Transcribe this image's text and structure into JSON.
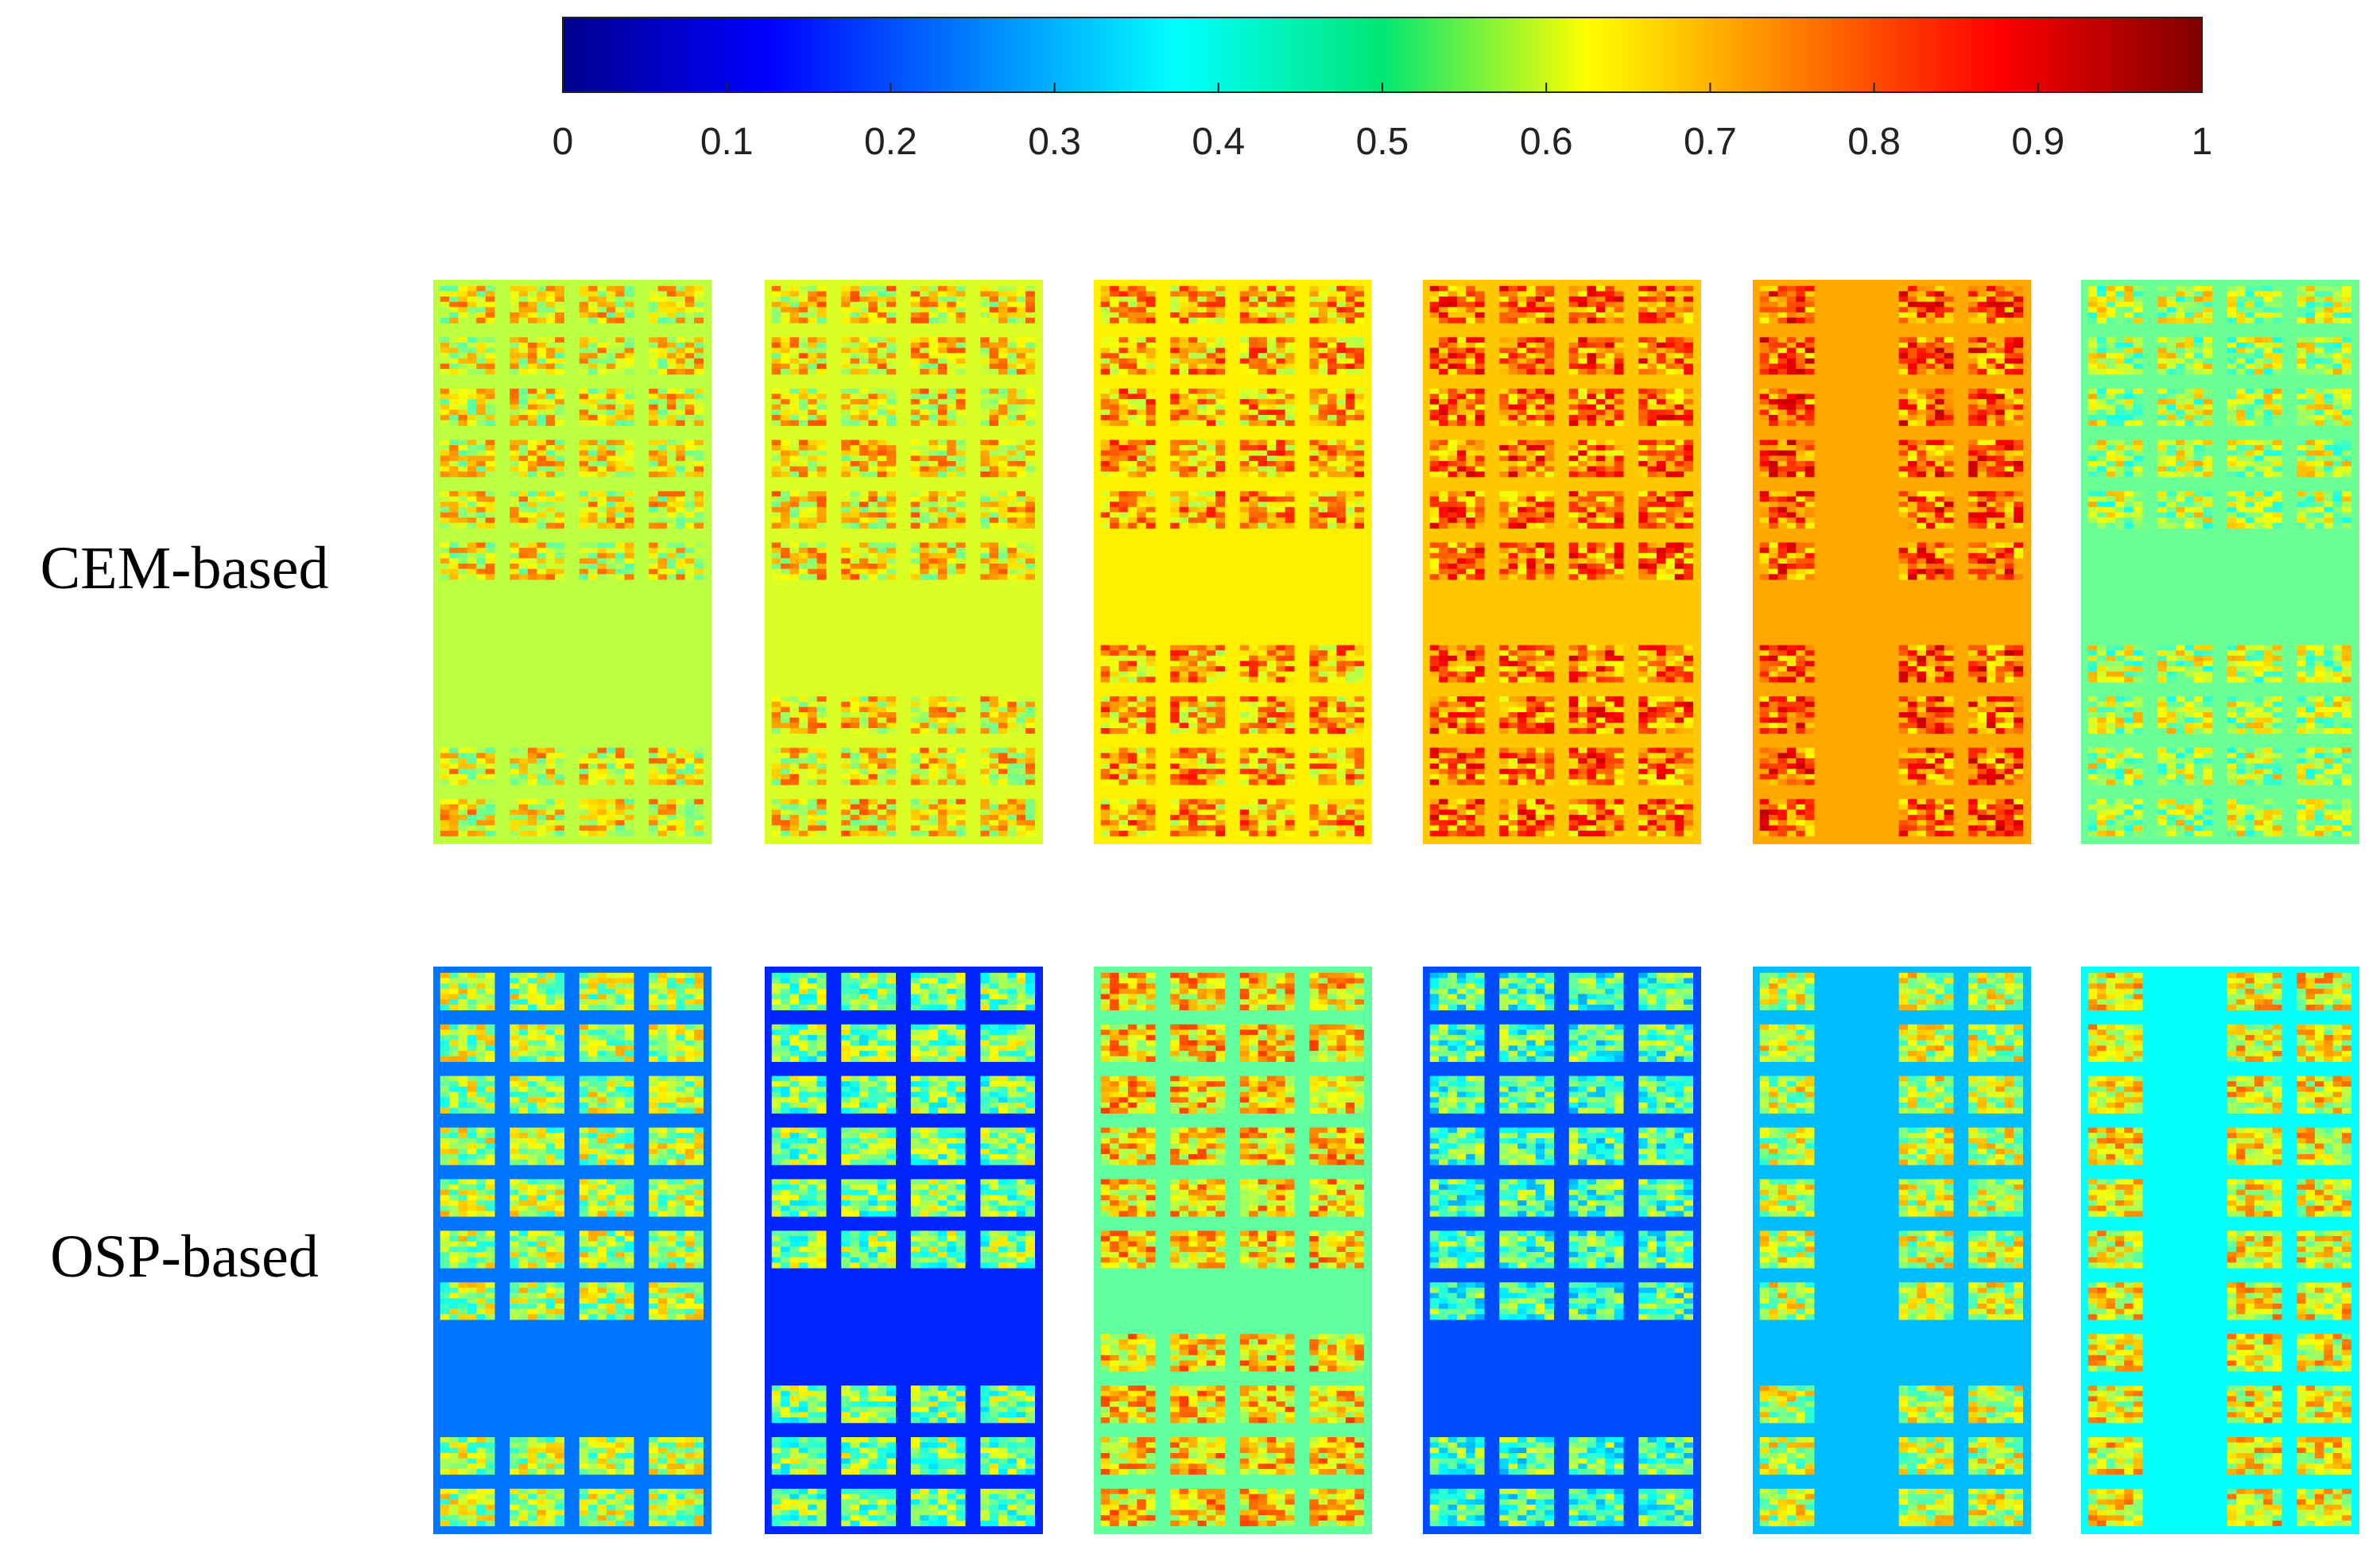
{
  "chart_data": {
    "type": "heatmap",
    "title": "",
    "colormap": "jet",
    "colorbar": {
      "range": [
        0,
        1
      ],
      "ticks": [
        0,
        0.1,
        0.2,
        0.3,
        0.4,
        0.5,
        0.6,
        0.7,
        0.8,
        0.9,
        1
      ],
      "tick_labels": [
        "0",
        "0.1",
        "0.2",
        "0.3",
        "0.4",
        "0.5",
        "0.6",
        "0.7",
        "0.8",
        "0.9",
        "1"
      ],
      "placement": "top"
    },
    "rows": [
      {
        "label": "CEM-based",
        "panels": [
          {
            "background": 0.56,
            "foreground_mean": 0.62
          },
          {
            "background": 0.59,
            "foreground_mean": 0.64
          },
          {
            "background": 0.64,
            "foreground_mean": 0.7
          },
          {
            "background": 0.68,
            "foreground_mean": 0.76
          },
          {
            "background": 0.71,
            "foreground_mean": 0.78
          },
          {
            "background": 0.48,
            "foreground_mean": 0.55
          }
        ]
      },
      {
        "label": "OSP-based",
        "panels": [
          {
            "background": 0.24,
            "foreground_mean": 0.55
          },
          {
            "background": 0.16,
            "foreground_mean": 0.5
          },
          {
            "background": 0.47,
            "foreground_mean": 0.66
          },
          {
            "background": 0.2,
            "foreground_mean": 0.45
          },
          {
            "background": 0.31,
            "foreground_mean": 0.57
          },
          {
            "background": 0.38,
            "foreground_mean": 0.62
          }
        ]
      }
    ]
  }
}
